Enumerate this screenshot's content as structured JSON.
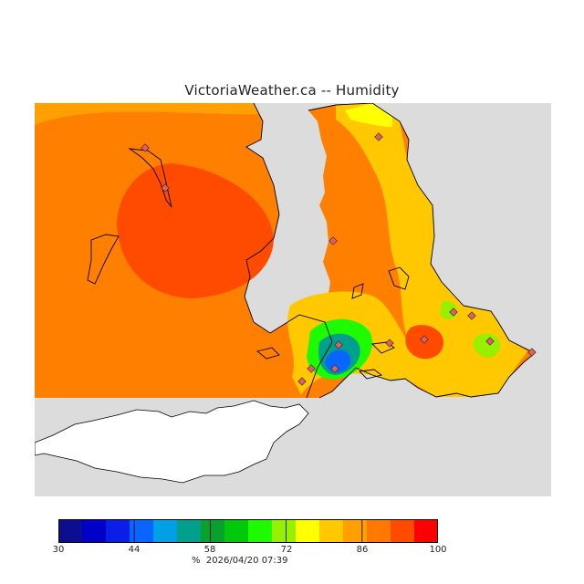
{
  "title": "VictoriaWeather.ca -- Humidity",
  "colors": {
    "land": "#ff7f00",
    "ocean": "#dcdcdc",
    "no_data": "#ffffff",
    "coast": "#000000"
  },
  "legend": {
    "min": 30,
    "max": 100,
    "tick_labels": [
      "30",
      "44",
      "58",
      "72",
      "86",
      "100"
    ],
    "color_steps": [
      "#0d0d8f",
      "#0000c8",
      "#0a1ee8",
      "#0a64ff",
      "#00a0e6",
      "#00a08c",
      "#0aa02d",
      "#00c80a",
      "#1efa00",
      "#96f000",
      "#ffff00",
      "#ffc800",
      "#ffa000",
      "#ff7800",
      "#ff4b00",
      "#ff0000"
    ],
    "unit": "%",
    "timestamp": "2026/04/20 07:39"
  },
  "stations_count": 14
}
